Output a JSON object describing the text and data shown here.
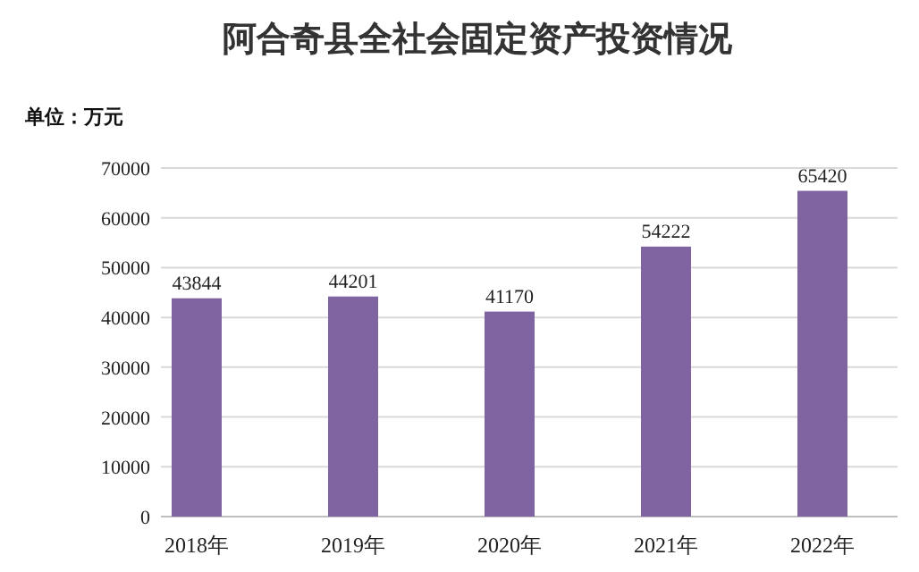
{
  "chart_data": {
    "type": "bar",
    "title": "阿合奇县全社会固定资产投资情况",
    "ylabel": "单位：万元",
    "categories": [
      "2018年",
      "2019年",
      "2020年",
      "2021年",
      "2022年"
    ],
    "values": [
      43844,
      44201,
      41170,
      54222,
      65420
    ],
    "color": "#8064a2",
    "ylim": [
      0,
      70000
    ],
    "yticks": [
      0,
      10000,
      20000,
      30000,
      40000,
      50000,
      60000,
      70000
    ],
    "grid": "y",
    "data_labels": true
  }
}
